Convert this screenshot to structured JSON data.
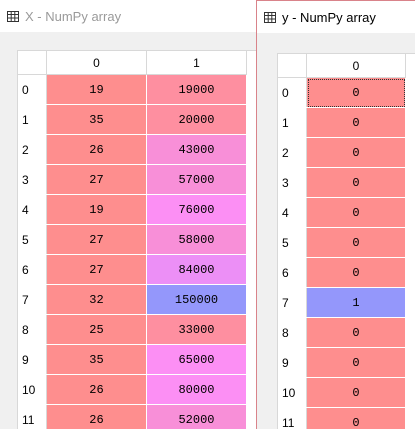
{
  "colors": {
    "pink": "#fe8e8e",
    "pink2": "#fe8fa0",
    "lavender": "#f88fd8",
    "magenta": "#fc8ff4",
    "violet": "#ec8ff6",
    "blue": "#9497fb"
  },
  "window_x": {
    "title": "X - NumPy array",
    "icon": "table-icon",
    "columns": [
      "0",
      "1"
    ],
    "rows": [
      {
        "label": "0",
        "cells": [
          {
            "v": "19",
            "c": "pink"
          },
          {
            "v": "19000",
            "c": "pink2"
          }
        ]
      },
      {
        "label": "1",
        "cells": [
          {
            "v": "35",
            "c": "pink"
          },
          {
            "v": "20000",
            "c": "pink2"
          }
        ]
      },
      {
        "label": "2",
        "cells": [
          {
            "v": "26",
            "c": "pink"
          },
          {
            "v": "43000",
            "c": "lavender"
          }
        ]
      },
      {
        "label": "3",
        "cells": [
          {
            "v": "27",
            "c": "pink"
          },
          {
            "v": "57000",
            "c": "lavender"
          }
        ]
      },
      {
        "label": "4",
        "cells": [
          {
            "v": "19",
            "c": "pink"
          },
          {
            "v": "76000",
            "c": "magenta"
          }
        ]
      },
      {
        "label": "5",
        "cells": [
          {
            "v": "27",
            "c": "pink"
          },
          {
            "v": "58000",
            "c": "lavender"
          }
        ]
      },
      {
        "label": "6",
        "cells": [
          {
            "v": "27",
            "c": "pink"
          },
          {
            "v": "84000",
            "c": "violet"
          }
        ]
      },
      {
        "label": "7",
        "cells": [
          {
            "v": "32",
            "c": "pink"
          },
          {
            "v": "150000",
            "c": "blue"
          }
        ]
      },
      {
        "label": "8",
        "cells": [
          {
            "v": "25",
            "c": "pink"
          },
          {
            "v": "33000",
            "c": "pink2"
          }
        ]
      },
      {
        "label": "9",
        "cells": [
          {
            "v": "35",
            "c": "pink"
          },
          {
            "v": "65000",
            "c": "magenta"
          }
        ]
      },
      {
        "label": "10",
        "cells": [
          {
            "v": "26",
            "c": "pink"
          },
          {
            "v": "80000",
            "c": "magenta"
          }
        ]
      },
      {
        "label": "11",
        "cells": [
          {
            "v": "26",
            "c": "pink"
          },
          {
            "v": "52000",
            "c": "lavender"
          }
        ]
      }
    ]
  },
  "window_y": {
    "title": "y - NumPy array",
    "icon": "table-icon",
    "columns": [
      "0"
    ],
    "rows": [
      {
        "label": "0",
        "cells": [
          {
            "v": "0",
            "c": "pink",
            "selected": true
          }
        ]
      },
      {
        "label": "1",
        "cells": [
          {
            "v": "0",
            "c": "pink"
          }
        ]
      },
      {
        "label": "2",
        "cells": [
          {
            "v": "0",
            "c": "pink"
          }
        ]
      },
      {
        "label": "3",
        "cells": [
          {
            "v": "0",
            "c": "pink"
          }
        ]
      },
      {
        "label": "4",
        "cells": [
          {
            "v": "0",
            "c": "pink"
          }
        ]
      },
      {
        "label": "5",
        "cells": [
          {
            "v": "0",
            "c": "pink"
          }
        ]
      },
      {
        "label": "6",
        "cells": [
          {
            "v": "0",
            "c": "pink"
          }
        ]
      },
      {
        "label": "7",
        "cells": [
          {
            "v": "1",
            "c": "blue"
          }
        ]
      },
      {
        "label": "8",
        "cells": [
          {
            "v": "0",
            "c": "pink"
          }
        ]
      },
      {
        "label": "9",
        "cells": [
          {
            "v": "0",
            "c": "pink"
          }
        ]
      },
      {
        "label": "10",
        "cells": [
          {
            "v": "0",
            "c": "pink"
          }
        ]
      },
      {
        "label": "11",
        "cells": [
          {
            "v": "0",
            "c": "pink"
          }
        ]
      }
    ]
  }
}
